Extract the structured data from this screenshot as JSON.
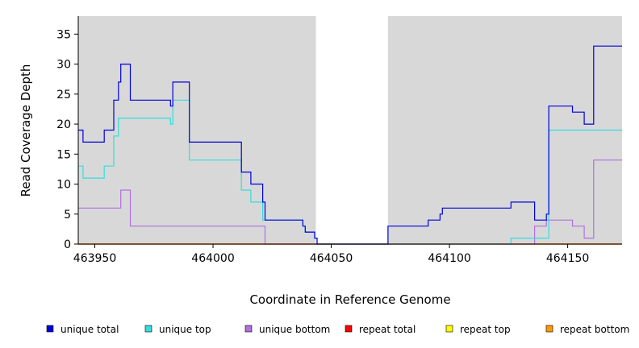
{
  "chart_data": {
    "type": "line",
    "step": true,
    "xlabel": "Coordinate in Reference Genome",
    "ylabel": "Read Coverage Depth",
    "xlim": [
      463943,
      464173
    ],
    "ylim": [
      0,
      38
    ],
    "x_ticks": [
      463950,
      464000,
      464050,
      464100,
      464150
    ],
    "y_ticks": [
      0,
      5,
      10,
      15,
      20,
      25,
      30,
      35
    ],
    "background_color": "#d8d8d8",
    "gap_region": [
      464043.5,
      464074
    ],
    "grid": false,
    "legend_position": "bottom",
    "series": [
      {
        "name": "unique total",
        "color": "#0000dd",
        "points": [
          [
            463943,
            19
          ],
          [
            463945,
            17
          ],
          [
            463954,
            19
          ],
          [
            463958,
            24
          ],
          [
            463960,
            27
          ],
          [
            463961,
            30
          ],
          [
            463965,
            24
          ],
          [
            463982,
            23
          ],
          [
            463983,
            27
          ],
          [
            463990,
            17
          ],
          [
            464012,
            12
          ],
          [
            464016,
            10
          ],
          [
            464021,
            7
          ],
          [
            464022,
            4
          ],
          [
            464038,
            3
          ],
          [
            464039,
            2
          ],
          [
            464043,
            1
          ],
          [
            464044,
            0
          ],
          [
            464074,
            3
          ],
          [
            464091,
            4
          ],
          [
            464096,
            5
          ],
          [
            464097,
            6
          ],
          [
            464126,
            7
          ],
          [
            464136,
            4
          ],
          [
            464141,
            5
          ],
          [
            464142,
            23
          ],
          [
            464152,
            22
          ],
          [
            464157,
            20
          ],
          [
            464161,
            33
          ],
          [
            464173,
            33
          ]
        ]
      },
      {
        "name": "unique top",
        "color": "#33dddd",
        "points": [
          [
            463943,
            13
          ],
          [
            463945,
            11
          ],
          [
            463954,
            13
          ],
          [
            463958,
            18
          ],
          [
            463960,
            21
          ],
          [
            463982,
            20
          ],
          [
            463983,
            24
          ],
          [
            463990,
            14
          ],
          [
            464012,
            9
          ],
          [
            464016,
            7
          ],
          [
            464021,
            4
          ],
          [
            464022,
            4
          ],
          [
            464038,
            3
          ],
          [
            464039,
            2
          ],
          [
            464043,
            1
          ],
          [
            464044,
            0
          ],
          [
            464074,
            0
          ],
          [
            464126,
            1
          ],
          [
            464142,
            19
          ],
          [
            464173,
            19
          ]
        ]
      },
      {
        "name": "unique bottom",
        "color": "#b070e0",
        "points": [
          [
            463943,
            6
          ],
          [
            463961,
            9
          ],
          [
            463965,
            3
          ],
          [
            464022,
            0
          ],
          [
            464074,
            0
          ],
          [
            464126,
            0
          ],
          [
            464136,
            3
          ],
          [
            464141,
            4
          ],
          [
            464152,
            3
          ],
          [
            464157,
            1
          ],
          [
            464161,
            14
          ],
          [
            464173,
            14
          ]
        ]
      },
      {
        "name": "repeat total",
        "color": "#ff0000",
        "points": [
          [
            463943,
            0
          ],
          [
            464173,
            0
          ]
        ]
      },
      {
        "name": "repeat top",
        "color": "#ffff00",
        "points": [
          [
            463943,
            0
          ],
          [
            464173,
            0
          ]
        ]
      },
      {
        "name": "repeat bottom",
        "color": "#ff9900",
        "points": [
          [
            463943,
            0
          ],
          [
            464173,
            0
          ]
        ]
      }
    ]
  }
}
